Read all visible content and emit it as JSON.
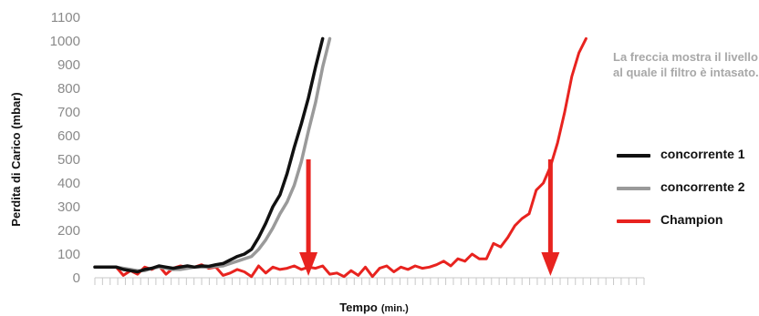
{
  "chart_data": {
    "type": "line",
    "title": "",
    "ylabel": "Perdita di Carico (mbar)",
    "xlabel": "Tempo",
    "xlabel_unit": "(min.)",
    "ylim": [
      0,
      1100
    ],
    "yticks": [
      0,
      100,
      200,
      300,
      400,
      500,
      600,
      700,
      800,
      900,
      1000,
      1100
    ],
    "x_points": 72,
    "x_tick_count": 73,
    "grid": false,
    "legend_position": "right",
    "annotation": "La freccia mostra il livello al quale il filtro è intasato.",
    "arrows": [
      {
        "color": "#e8231f",
        "x": 30,
        "from": 500,
        "to": 0
      },
      {
        "color": "#e8231f",
        "x": 64,
        "from": 500,
        "to": 0
      }
    ],
    "series": [
      {
        "name": "concorrente 1",
        "color": "#111111",
        "x": [
          0,
          3,
          4,
          5,
          6,
          7,
          8,
          9,
          10,
          11,
          12,
          13,
          14,
          15,
          16,
          17,
          18,
          19,
          20,
          21,
          22,
          23,
          24,
          25,
          26,
          27,
          28,
          29,
          30,
          31,
          32
        ],
        "values": [
          45,
          45,
          35,
          30,
          25,
          35,
          40,
          50,
          45,
          40,
          45,
          50,
          45,
          50,
          48,
          55,
          60,
          75,
          90,
          100,
          120,
          170,
          230,
          300,
          350,
          440,
          550,
          650,
          760,
          890,
          1010
        ]
      },
      {
        "name": "concorrente 2",
        "color": "#9a9a9a",
        "x": [
          0,
          3,
          4,
          5,
          6,
          7,
          8,
          9,
          10,
          11,
          12,
          13,
          14,
          15,
          16,
          17,
          18,
          19,
          20,
          21,
          22,
          23,
          24,
          25,
          26,
          27,
          28,
          29,
          30,
          31,
          32,
          33
        ],
        "values": [
          45,
          45,
          40,
          35,
          30,
          30,
          40,
          45,
          40,
          35,
          35,
          40,
          45,
          45,
          45,
          48,
          50,
          60,
          70,
          80,
          90,
          120,
          160,
          210,
          270,
          320,
          390,
          490,
          620,
          740,
          890,
          1010
        ]
      },
      {
        "name": "Champion",
        "color": "#e8231f",
        "x": [
          0,
          1,
          2,
          3,
          4,
          5,
          6,
          7,
          8,
          9,
          10,
          11,
          12,
          13,
          14,
          15,
          16,
          17,
          18,
          19,
          20,
          21,
          22,
          23,
          24,
          25,
          26,
          27,
          28,
          29,
          30,
          31,
          32,
          33,
          34,
          35,
          36,
          37,
          38,
          39,
          40,
          41,
          42,
          43,
          44,
          45,
          46,
          47,
          48,
          49,
          50,
          51,
          52,
          53,
          54,
          55,
          56,
          57,
          58,
          59,
          60,
          61,
          62,
          63,
          64,
          65,
          66,
          67,
          68,
          69
        ],
        "values": [
          45,
          45,
          45,
          45,
          10,
          30,
          15,
          45,
          35,
          50,
          15,
          40,
          50,
          45,
          45,
          55,
          40,
          45,
          10,
          20,
          35,
          25,
          5,
          50,
          20,
          45,
          35,
          40,
          50,
          35,
          45,
          40,
          50,
          15,
          20,
          5,
          30,
          10,
          45,
          5,
          40,
          50,
          25,
          45,
          35,
          50,
          40,
          45,
          55,
          70,
          50,
          80,
          70,
          100,
          80,
          80,
          145,
          130,
          170,
          220,
          250,
          270,
          370,
          400,
          470,
          570,
          700,
          850,
          950,
          1010
        ]
      }
    ]
  }
}
